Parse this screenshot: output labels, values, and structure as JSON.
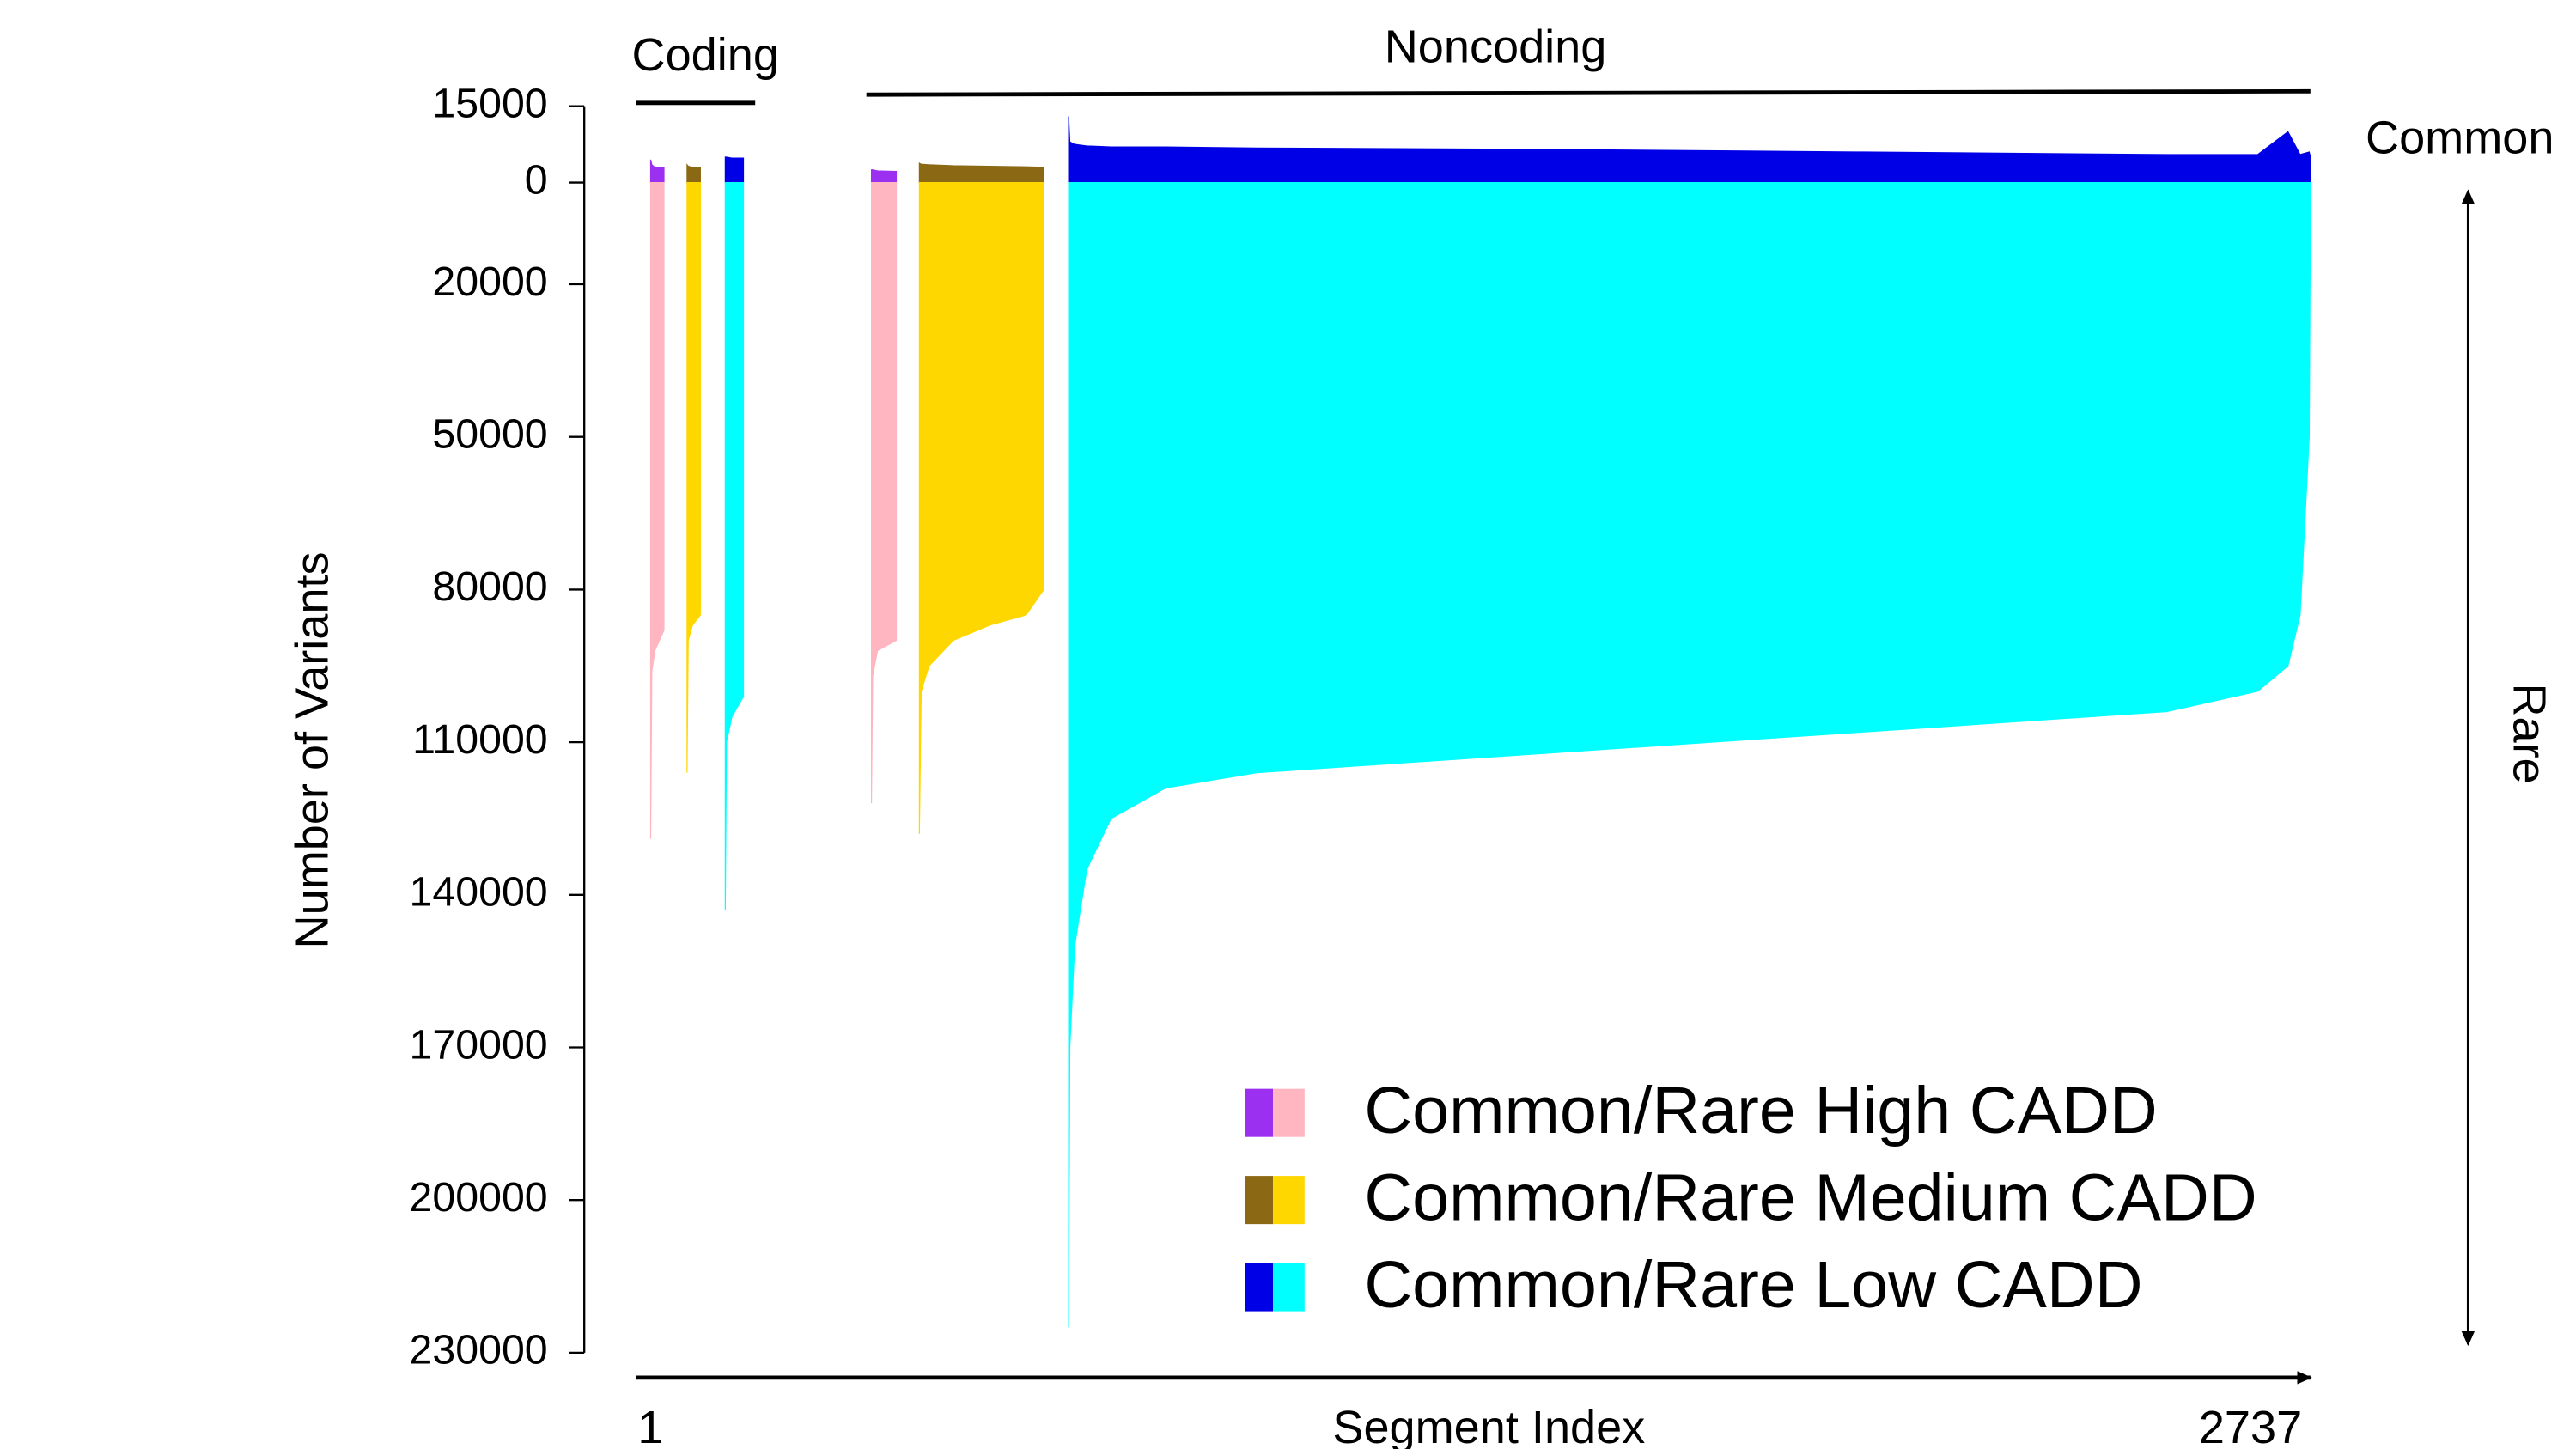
{
  "chart_data": {
    "type": "mirrored-area",
    "ylabel": "Number of Variants",
    "xlabel": "Segment Index",
    "annotations": {
      "coding": "Coding",
      "noncoding": "Noncoding",
      "common": "Common",
      "rare": "Rare"
    },
    "xlim": [
      1,
      2737
    ],
    "xticks": [
      1,
      2737
    ],
    "ylim": [
      -15000,
      230000
    ],
    "yticks": [
      {
        "value": -15000,
        "label": "15000"
      },
      0,
      20000,
      50000,
      80000,
      110000,
      140000,
      170000,
      200000,
      230000
    ],
    "grid": false,
    "legend": "bottom-right",
    "series": [
      {
        "name": "Common/Rare High CADD",
        "common_color": "#9b30f0",
        "rare_color": "#ffb6c1",
        "x": [
          1,
          3,
          8,
          23,
          200,
          365,
          367,
          375,
          406
        ],
        "common": [
          4500,
          3500,
          3000,
          3000,
          null,
          2500,
          2500,
          2300,
          2200
        ],
        "rare": [
          129000,
          96000,
          92000,
          88000,
          null,
          122000,
          97000,
          92000,
          90000
        ]
      },
      {
        "name": "Common/Rare Medium CADD",
        "common_color": "#8b6914",
        "rare_color": "#ffd700",
        "x": [
          61,
          63,
          70,
          83,
          300,
          444,
          447,
          460,
          500,
          560,
          620,
          649
        ],
        "common": [
          3500,
          3200,
          3000,
          3000,
          null,
          3800,
          3600,
          3500,
          3300,
          3200,
          3100,
          3000
        ],
        "rare": [
          116000,
          90000,
          87000,
          85000,
          null,
          128000,
          100000,
          95000,
          90000,
          87000,
          85000,
          80000
        ]
      },
      {
        "name": "Common/Rare Low CADD",
        "common_color": "#0000e6",
        "rare_color": "#00ffff",
        "x": [
          124,
          126,
          135,
          154,
          400,
          690,
          692,
          700,
          720,
          760,
          850,
          1000,
          1500,
          2000,
          2500,
          2650,
          2700,
          2720,
          2735,
          2737
        ],
        "common": [
          5000,
          5000,
          4800,
          4800,
          null,
          13000,
          8000,
          7500,
          7200,
          7000,
          7000,
          6800,
          6500,
          6000,
          5500,
          5500,
          10000,
          5500,
          6000,
          5000
        ],
        "rare": [
          143000,
          110000,
          105000,
          101000,
          null,
          225000,
          170000,
          150000,
          135000,
          125000,
          119000,
          116000,
          112000,
          108000,
          104000,
          100000,
          95000,
          85000,
          50000,
          3000
        ]
      }
    ]
  }
}
